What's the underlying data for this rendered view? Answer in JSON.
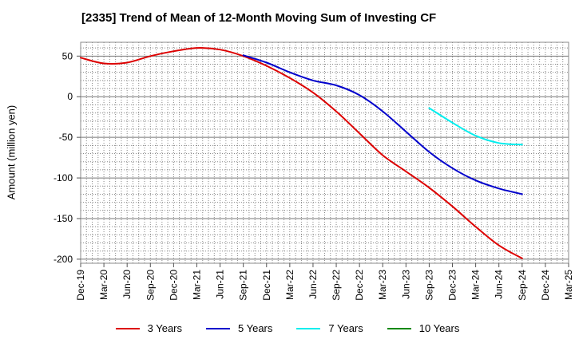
{
  "chart_data": {
    "type": "line",
    "title": "[2335]  Trend of Mean of 12-Month Moving Sum of Investing CF",
    "xlabel": "",
    "ylabel": "Amount (million yen)",
    "ylim": [
      -205,
      67
    ],
    "yticks": [
      50,
      0,
      -50,
      -100,
      -150,
      -200
    ],
    "x": [
      "Dec-19",
      "Mar-20",
      "Jun-20",
      "Sep-20",
      "Dec-20",
      "Mar-21",
      "Jun-21",
      "Sep-21",
      "Dec-21",
      "Mar-22",
      "Jun-22",
      "Sep-22",
      "Dec-22",
      "Mar-23",
      "Jun-23",
      "Sep-23",
      "Dec-23",
      "Mar-24",
      "Jun-24",
      "Sep-24",
      "Dec-24",
      "Mar-25"
    ],
    "series": [
      {
        "name": "3 Years",
        "color": "#dd0000",
        "values": [
          48,
          41,
          42,
          50,
          56,
          60,
          58,
          50,
          38,
          23,
          5,
          -18,
          -45,
          -72,
          -92,
          -112,
          -135,
          -160,
          -183,
          -199,
          null,
          null
        ]
      },
      {
        "name": "5 Years",
        "color": "#0000cc",
        "values": [
          null,
          null,
          null,
          null,
          null,
          null,
          null,
          51,
          42,
          30,
          20,
          14,
          2,
          -18,
          -43,
          -68,
          -88,
          -103,
          -113,
          -120,
          null,
          null
        ]
      },
      {
        "name": "7 Years",
        "color": "#00eeee",
        "values": [
          null,
          null,
          null,
          null,
          null,
          null,
          null,
          null,
          null,
          null,
          null,
          null,
          null,
          null,
          null,
          -14,
          -32,
          -48,
          -57,
          -59,
          null,
          null
        ]
      },
      {
        "name": "10 Years",
        "color": "#008800",
        "values": [
          null,
          null,
          null,
          null,
          null,
          null,
          null,
          null,
          null,
          null,
          null,
          null,
          null,
          null,
          null,
          null,
          null,
          null,
          null,
          null,
          null,
          null
        ]
      }
    ]
  }
}
